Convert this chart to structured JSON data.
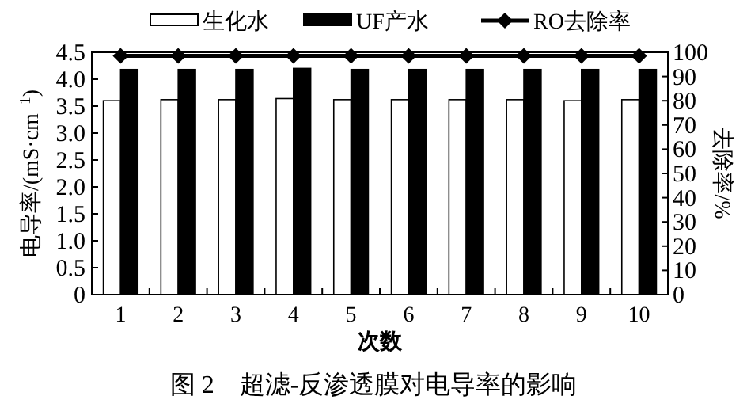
{
  "chart_data": {
    "type": "bar",
    "xlabel": "次数",
    "ylabel": "电导率/(mS·cm$^{−1}$)",
    "y2label": "去除率/%",
    "annotations": [
      "图 2　超滤-反渗透膜对电导率的影响"
    ],
    "categories": [
      "1",
      "2",
      "3",
      "4",
      "5",
      "6",
      "7",
      "8",
      "9",
      "10"
    ],
    "series": [
      {
        "name": "生化水",
        "color": "#ffffff",
        "values": [
          3.6,
          3.62,
          3.62,
          3.64,
          3.62,
          3.62,
          3.62,
          3.62,
          3.6,
          3.62
        ]
      },
      {
        "name": "UF产水",
        "color": "#000000",
        "values": [
          4.18,
          4.18,
          4.18,
          4.2,
          4.18,
          4.18,
          4.18,
          4.18,
          4.18,
          4.18
        ]
      },
      {
        "name": "RO去除率",
        "type": "line",
        "axis": "y2",
        "color": "#000000",
        "marker": "diamond",
        "values": [
          98.5,
          98.5,
          98.5,
          98.5,
          98.5,
          98.5,
          98.5,
          98.5,
          98.5,
          98.5
        ]
      }
    ],
    "ylim": [
      0,
      4.5
    ],
    "yticks": [
      0,
      {
        "value": 0.5,
        "label": "0.5"
      },
      {
        "value": 1,
        "label": "1.0"
      },
      {
        "value": 1.5,
        "label": "1.5"
      },
      {
        "value": 2,
        "label": "2.0"
      },
      {
        "value": 2.5,
        "label": "2.5"
      },
      {
        "value": 3,
        "label": "3.0"
      },
      {
        "value": 3.5,
        "label": "3.5"
      },
      {
        "value": 4,
        "label": "4.0"
      },
      {
        "value": 4.5,
        "label": "4.5"
      }
    ],
    "y2lim": [
      0,
      100
    ],
    "y2ticks": [
      0,
      10,
      20,
      30,
      40,
      50,
      60,
      70,
      80,
      90,
      100
    ],
    "legend": "top",
    "grid": false
  }
}
